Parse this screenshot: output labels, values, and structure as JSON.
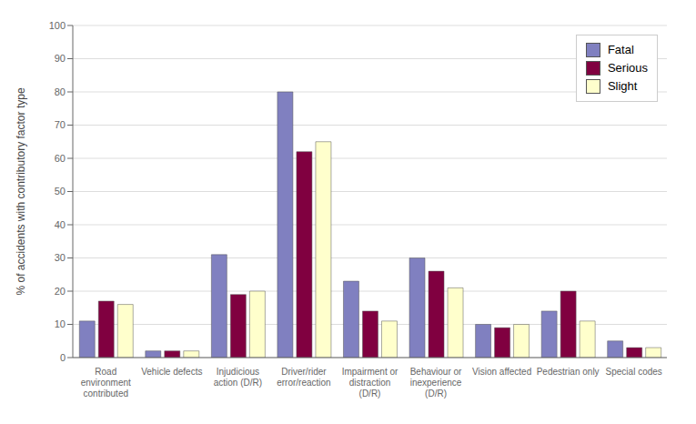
{
  "chart_data": {
    "type": "bar",
    "categories": [
      "Road\nenvironment\ncontributed",
      "Vehicle defects",
      "Injudicious\naction (D/R)",
      "Driver/rider\nerror/reaction",
      "Impairment or\ndistraction\n(D/R)",
      "Behaviour or\ninexperience\n(D/R)",
      "Vision affected",
      "Pedestrian only",
      "Special codes"
    ],
    "series": [
      {
        "name": "Fatal",
        "color": "#8080c0",
        "values": [
          11,
          2,
          31,
          80,
          23,
          30,
          10,
          14,
          5
        ]
      },
      {
        "name": "Serious",
        "color": "#800040",
        "values": [
          17,
          2,
          19,
          62,
          14,
          26,
          9,
          20,
          3
        ]
      },
      {
        "name": "Slight",
        "color": "#ffffcc",
        "values": [
          16,
          2,
          20,
          65,
          11,
          21,
          10,
          11,
          3
        ]
      }
    ],
    "ylabel": "% of accidents with contributory factor type",
    "ylim": [
      0,
      100
    ],
    "yticks": [
      0,
      10,
      20,
      30,
      40,
      50,
      60,
      70,
      80,
      90,
      100
    ],
    "grid": true,
    "legend": "upper right"
  }
}
